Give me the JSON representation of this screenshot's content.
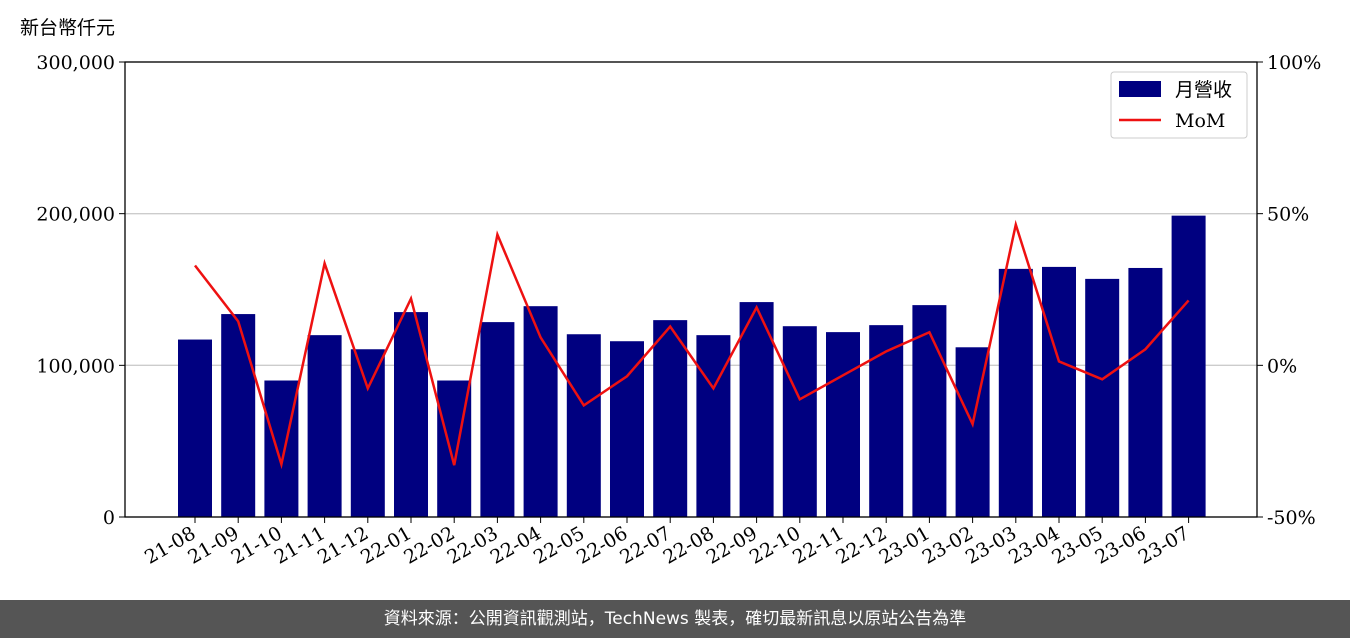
{
  "chart_data": {
    "type": "bar_line",
    "ylabel": "新台幣仟元",
    "categories": [
      "21-08",
      "21-09",
      "21-10",
      "21-11",
      "21-12",
      "22-01",
      "22-02",
      "22-03",
      "22-04",
      "22-05",
      "22-06",
      "22-07",
      "22-08",
      "22-09",
      "22-10",
      "22-11",
      "22-12",
      "23-01",
      "23-02",
      "23-03",
      "23-04",
      "23-05",
      "23-06",
      "23-07"
    ],
    "series": [
      {
        "name": "月營收",
        "type": "bar",
        "color": "#000080",
        "values": [
          117000,
          133800,
          90000,
          119900,
          110600,
          135100,
          90000,
          128500,
          139000,
          120500,
          115900,
          129800,
          119900,
          141700,
          125800,
          121900,
          126500,
          139700,
          111900,
          163600,
          164900,
          157000,
          164200,
          198700
        ]
      },
      {
        "name": "MoM",
        "type": "line",
        "axis": "y2",
        "color": "#ee1111",
        "values": [
          32.9,
          14.5,
          -32.6,
          33.6,
          -7.6,
          22.0,
          -32.9,
          43.1,
          9.2,
          -13.2,
          -3.6,
          12.8,
          -7.6,
          19.1,
          -11.2,
          -3.3,
          4.6,
          10.9,
          -19.4,
          46.4,
          1.3,
          -4.6,
          5.3,
          21.4
        ]
      }
    ],
    "ylim": [
      0,
      300000
    ],
    "yticks": [
      0,
      {
        "value": 100000,
        "label": "100,000"
      },
      {
        "value": 200000,
        "label": "200,000"
      },
      {
        "value": 300000,
        "label": "300,000"
      }
    ],
    "y2lim": [
      -50,
      100
    ],
    "y2ticks": [
      {
        "value": -50,
        "label": "-50%"
      },
      {
        "value": 0,
        "label": "0%"
      },
      {
        "value": 50,
        "label": "50%"
      },
      {
        "value": 100,
        "label": "100%"
      }
    ],
    "grid": true,
    "legend": "upper right"
  },
  "footer": "資料來源：公開資訊觀測站，TechNews 製表，確切最新訊息以原站公告為準"
}
